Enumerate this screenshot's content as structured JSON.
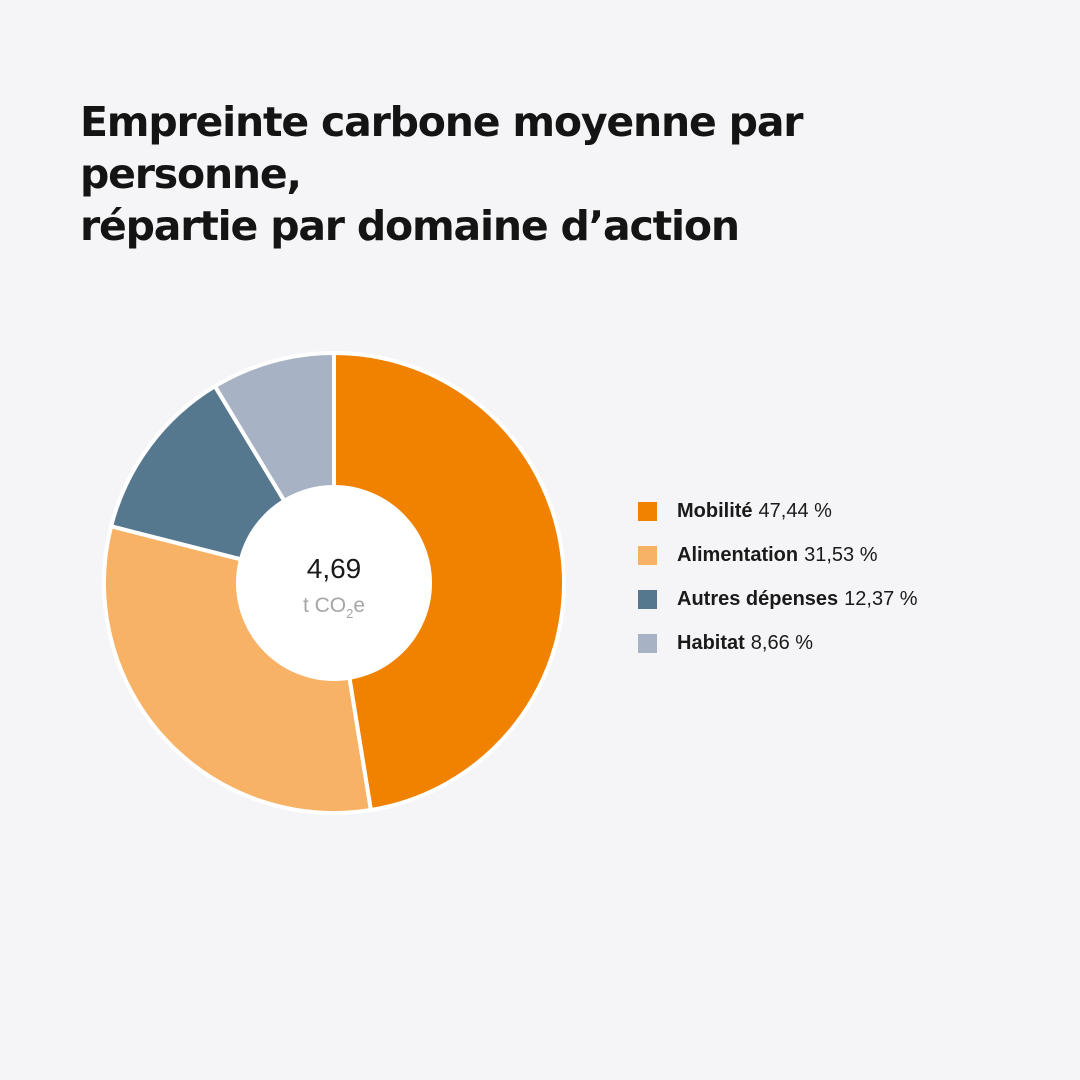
{
  "title": {
    "line1": "Empreinte carbone moyenne par personne,",
    "line2": "répartie par domaine d’action"
  },
  "chart_data": {
    "type": "pie",
    "variant": "donut",
    "center": {
      "value": "4,69",
      "unit_prefix": "t CO",
      "unit_sub": "2",
      "unit_suffix": "e"
    },
    "legend_position": "right",
    "series": [
      {
        "name": "Mobilité",
        "value": 47.44,
        "label": "47,44 %",
        "color": "#f08200"
      },
      {
        "name": "Alimentation",
        "value": 31.53,
        "label": "31,53 %",
        "color": "#f8b266"
      },
      {
        "name": "Autres dépenses",
        "value": 12.37,
        "label": "12,37 %",
        "color": "#56788f"
      },
      {
        "name": "Habitat",
        "value": 8.66,
        "label": "8,66 %",
        "color": "#a7b3c4"
      }
    ]
  }
}
